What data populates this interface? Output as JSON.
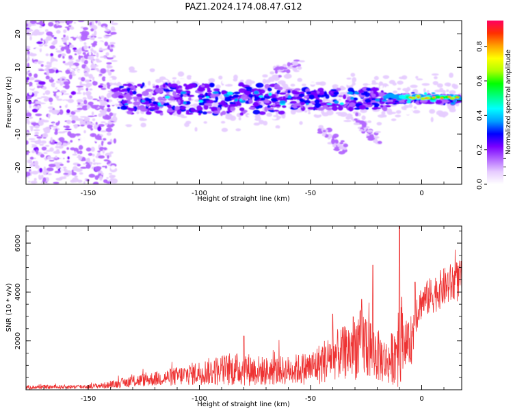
{
  "title": "PAZ1.2024.174.08.47.G12",
  "chart_data": [
    {
      "type": "heatmap",
      "xlabel": "Height of straight line (km)",
      "ylabel": "Frequency (Hz)",
      "xlim": [
        -178,
        18
      ],
      "ylim": [
        -25,
        24
      ],
      "xticks": [
        -150,
        -100,
        -50,
        0
      ],
      "yticks": [
        -20,
        -10,
        0,
        10,
        20
      ],
      "grid": false,
      "colorbar": {
        "label": "Normalized spectral amplitude",
        "range": [
          0,
          0.95
        ],
        "ticks": [
          0.0,
          0.2,
          0.4,
          0.6,
          0.8
        ],
        "colors": [
          "#ffffff",
          "#e6ccff",
          "#b266ff",
          "#7a00ff",
          "#0000ff",
          "#00a0ff",
          "#00ffff",
          "#00ff80",
          "#00ff00",
          "#b0ff00",
          "#ffff00",
          "#ffa000",
          "#ff3000",
          "#ff0060"
        ]
      },
      "features": {
        "scatter_region_x": [
          -178,
          -138
        ],
        "scatter_region_y": [
          -25,
          24
        ],
        "main_band_x": [
          -138,
          18
        ],
        "main_band_center_y": 0.5,
        "branch_lower": [
          [
            -45,
            -8
          ],
          [
            -35,
            -15
          ]
        ],
        "branch_lower2": [
          [
            -30,
            -5
          ],
          [
            -20,
            -12
          ]
        ],
        "branch_upper": [
          [
            -68,
            8
          ],
          [
            -55,
            11
          ]
        ]
      }
    },
    {
      "type": "line",
      "xlabel": "Height of straight line (km)",
      "ylabel": "SNR (10 * v/v)",
      "xlim": [
        -178,
        18
      ],
      "ylim": [
        0,
        6700
      ],
      "xticks": [
        -150,
        -100,
        -50,
        0
      ],
      "yticks": [
        2000,
        4000,
        6000
      ],
      "grid": false,
      "color": "#ee3333",
      "envelope": [
        [
          -178,
          100,
          80
        ],
        [
          -150,
          130,
          90
        ],
        [
          -140,
          200,
          140
        ],
        [
          -130,
          350,
          250
        ],
        [
          -120,
          450,
          300
        ],
        [
          -110,
          550,
          400
        ],
        [
          -100,
          700,
          500
        ],
        [
          -90,
          800,
          650
        ],
        [
          -80,
          850,
          700
        ],
        [
          -70,
          750,
          600
        ],
        [
          -60,
          800,
          600
        ],
        [
          -50,
          900,
          700
        ],
        [
          -45,
          1100,
          900
        ],
        [
          -40,
          1400,
          1000
        ],
        [
          -35,
          1500,
          1100
        ],
        [
          -30,
          1800,
          1400
        ],
        [
          -25,
          1900,
          1500
        ],
        [
          -20,
          1400,
          1100
        ],
        [
          -15,
          1100,
          900
        ],
        [
          -12,
          1500,
          1300
        ],
        [
          -10,
          2500,
          2500
        ],
        [
          -8,
          2100,
          1000
        ],
        [
          -6,
          1800,
          900
        ],
        [
          -4,
          2200,
          1100
        ],
        [
          -3,
          3100,
          900
        ],
        [
          0,
          3600,
          700
        ],
        [
          5,
          3900,
          800
        ],
        [
          10,
          4200,
          800
        ],
        [
          15,
          4400,
          900
        ],
        [
          18,
          4500,
          800
        ]
      ],
      "spikes": [
        [
          -10,
          6700
        ],
        [
          -22,
          5100
        ],
        [
          -27,
          3700
        ],
        [
          -40,
          3100
        ],
        [
          -80,
          2200
        ],
        [
          -3,
          4400
        ]
      ]
    }
  ]
}
